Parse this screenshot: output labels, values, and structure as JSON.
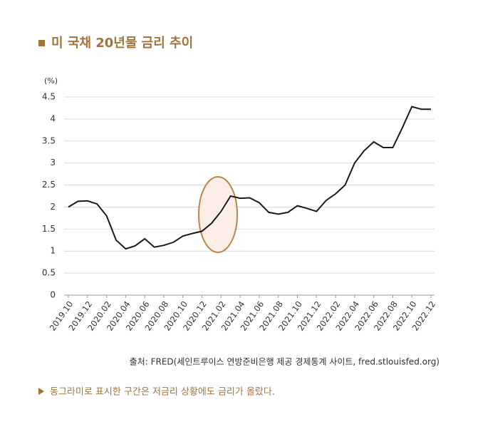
{
  "chart_data": {
    "type": "line",
    "title": "미 국채 20년물 금리 추이",
    "y_unit": "(%)",
    "source": "출처: FRED(세인트루이스 연방준비은행 제공 경제통계 사이트, fred.stlouisfed.org)",
    "note": "동그라미로 표시한 구간은 저금리 상황에도 금리가 올랐다.",
    "categories": [
      "2019.10",
      null,
      "2019.12",
      null,
      "2020.02",
      null,
      "2020.04",
      null,
      "2020.06",
      null,
      "2020.08",
      null,
      "2020.10",
      null,
      "2020.12",
      null,
      "2021.02",
      null,
      "2021.04",
      null,
      "2021.06",
      null,
      "2021.08",
      null,
      "2021.10",
      null,
      "2021.12",
      null,
      "2022.02",
      null,
      "2022.04",
      null,
      "2022.06",
      null,
      "2022.08",
      null,
      "2022.10",
      null,
      "2022.12"
    ],
    "series": [
      {
        "name": "미 국채 20년물",
        "color": "#1a1a1a",
        "values": [
          2.0,
          2.13,
          2.14,
          2.07,
          1.8,
          1.25,
          1.05,
          1.12,
          1.28,
          1.09,
          1.13,
          1.2,
          1.34,
          1.4,
          1.45,
          1.63,
          1.9,
          2.25,
          2.2,
          2.21,
          2.1,
          1.88,
          1.84,
          1.88,
          2.03,
          1.97,
          1.9,
          2.15,
          2.3,
          2.5,
          3.0,
          3.28,
          3.48,
          3.35,
          3.35,
          3.8,
          4.28,
          4.22,
          4.22
        ]
      }
    ],
    "ylim": [
      0,
      4.5
    ],
    "yticks": [
      0,
      0.5,
      1,
      1.5,
      2,
      2.5,
      3,
      3.5,
      4,
      4.5
    ],
    "grid": true
  }
}
